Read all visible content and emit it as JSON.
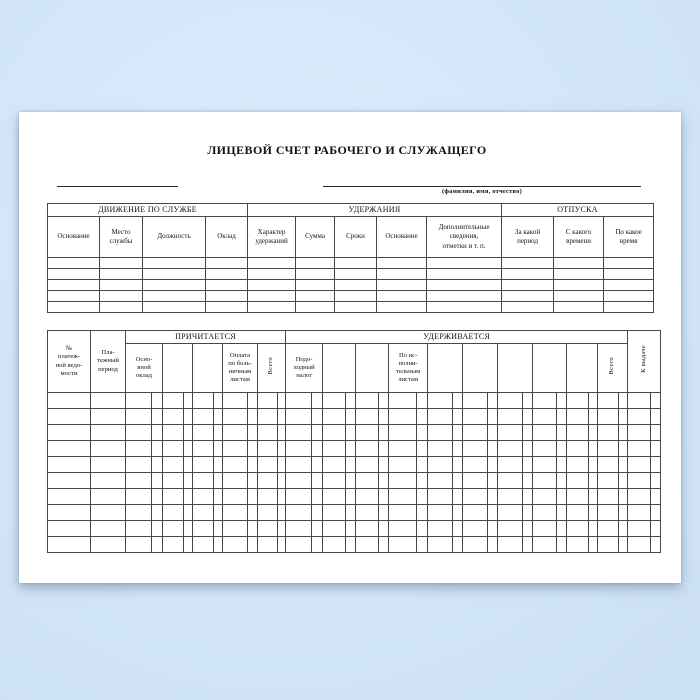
{
  "document": {
    "title": "ЛИЦЕВОЙ СЧЕТ РАБОЧЕГО И СЛУЖАЩЕГО",
    "name_line_caption": "(фамилия, имя, отчество)"
  },
  "table1": {
    "groups": [
      {
        "label": "ДВИЖЕНИЕ ПО СЛУЖБЕ",
        "colspan": 4
      },
      {
        "label": "УДЕРЖАНИЯ",
        "colspan": 5
      },
      {
        "label": "ОТПУСКА",
        "colspan": 3
      }
    ],
    "columns": [
      "Основание",
      "Место\nслужбы",
      "Должность",
      "Оклад",
      "Характер\nудержаний",
      "Сумма",
      "Сроки",
      "Основание",
      "Дополнительные\nсведения,\nотметки и т. п.",
      "За какой\nпериод",
      "С какого\nвремени",
      "По какое\nвремя"
    ],
    "empty_body_rows": 5
  },
  "table2": {
    "col_payment_sheet_no": "№\nплатеж-\nной ведо-\nмости",
    "col_payment_period": "Пла-\nтежный\nпериод",
    "group_due": "ПРИЧИТАЕТСЯ",
    "group_withheld": "УДЕРЖИВАЕТСЯ",
    "col_payout": "К выдаче",
    "due_columns": [
      "Осно-\nвной\nоклад",
      "",
      "",
      "Оплата\nпо боль-\nничным\nлистам",
      "Всего"
    ],
    "withheld_columns": [
      "Подо-\nходный\nналог",
      "",
      "",
      "По ис-\nполни-\nтельным\nлистам",
      "",
      "",
      "",
      "",
      "",
      "Всего"
    ],
    "empty_body_rows": 10
  }
}
